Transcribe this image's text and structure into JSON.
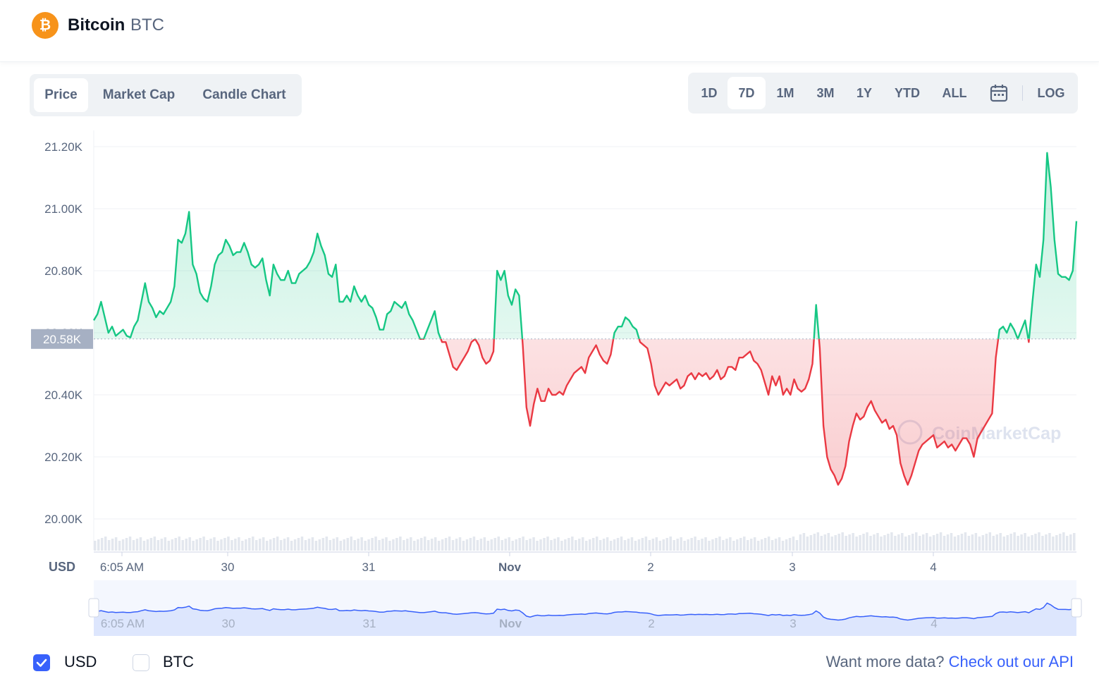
{
  "header": {
    "coin_name": "Bitcoin",
    "coin_symbol": "BTC",
    "logo_glyph": "₿",
    "logo_color": "#f7931a"
  },
  "tabs": [
    {
      "label": "Price",
      "active": true
    },
    {
      "label": "Market Cap",
      "active": false
    },
    {
      "label": "Candle Chart",
      "active": false
    }
  ],
  "ranges": [
    {
      "label": "1D",
      "active": false
    },
    {
      "label": "7D",
      "active": true
    },
    {
      "label": "1M",
      "active": false
    },
    {
      "label": "3M",
      "active": false
    },
    {
      "label": "1Y",
      "active": false
    },
    {
      "label": "YTD",
      "active": false
    },
    {
      "label": "ALL",
      "active": false
    }
  ],
  "log_label": "LOG",
  "calendar_icon": "calendar-icon",
  "colors": {
    "up": "#16c784",
    "down": "#ea3943",
    "accent": "#3861fb",
    "grid": "#eff2f5",
    "axis_text": "#58667e",
    "navigator_fill": "#dde6fd"
  },
  "chart_data": {
    "type": "line",
    "title": "",
    "ylabel": "USD",
    "ylim": [
      19900,
      21280
    ],
    "y_ticks": [
      "21.20K",
      "21.00K",
      "20.80K",
      "20.60K",
      "20.40K",
      "20.20K",
      "20.00K"
    ],
    "y_tick_values": [
      21200,
      21000,
      20800,
      20600,
      20400,
      20200,
      20000
    ],
    "baseline_label": "20.58K",
    "baseline_value": 20580,
    "x_tick_labels": [
      "6:05 AM",
      "30",
      "31",
      "Nov",
      "2",
      "3",
      "4"
    ],
    "watermark": "CoinMarketCap",
    "series": [
      {
        "values": [
          20640,
          20660,
          20700,
          20650,
          20600,
          20620,
          20590,
          20600,
          20610,
          20590,
          20585,
          20620,
          20640,
          20700,
          20760,
          20700,
          20680,
          20650,
          20670,
          20660,
          20680,
          20700,
          20750,
          20900,
          20890,
          20920,
          20990,
          20820,
          20790,
          20730,
          20710,
          20700,
          20750,
          20820,
          20850,
          20860,
          20900,
          20880,
          20850,
          20860,
          20860,
          20890,
          20860,
          20820,
          20810,
          20820,
          20840,
          20770,
          20720,
          20820,
          20790,
          20770,
          20770,
          20800,
          20760,
          20760,
          20790,
          20800,
          20810,
          20830,
          20860,
          20920,
          20880,
          20850,
          20790,
          20780,
          20820,
          20700,
          20700,
          20720,
          20700,
          20750,
          20720,
          20700,
          20720,
          20690,
          20680,
          20650,
          20610,
          20610,
          20660,
          20670,
          20700,
          20690,
          20680,
          20700,
          20660,
          20640,
          20610,
          20580,
          20580,
          20610,
          20640,
          20670,
          20600,
          20570,
          20570,
          20530,
          20490,
          20480,
          20500,
          20520,
          20540,
          20570,
          20580,
          20560,
          20520,
          20500,
          20510,
          20540,
          20800,
          20770,
          20800,
          20720,
          20690,
          20740,
          20720,
          20560,
          20360,
          20300,
          20370,
          20420,
          20380,
          20380,
          20420,
          20400,
          20400,
          20410,
          20400,
          20430,
          20450,
          20470,
          20480,
          20490,
          20470,
          20520,
          20540,
          20560,
          20530,
          20510,
          20500,
          20530,
          20600,
          20620,
          20620,
          20650,
          20640,
          20620,
          20610,
          20570,
          20560,
          20550,
          20500,
          20430,
          20400,
          20420,
          20440,
          20430,
          20440,
          20450,
          20420,
          20430,
          20460,
          20470,
          20450,
          20470,
          20460,
          20470,
          20450,
          20460,
          20480,
          20450,
          20460,
          20490,
          20490,
          20480,
          20520,
          20520,
          20530,
          20540,
          20510,
          20500,
          20480,
          20440,
          20400,
          20460,
          20430,
          20460,
          20400,
          20420,
          20400,
          20450,
          20420,
          20410,
          20420,
          20450,
          20500,
          20690,
          20550,
          20300,
          20200,
          20160,
          20140,
          20110,
          20130,
          20170,
          20250,
          20300,
          20340,
          20320,
          20330,
          20360,
          20380,
          20350,
          20330,
          20310,
          20320,
          20290,
          20300,
          20270,
          20180,
          20140,
          20110,
          20140,
          20180,
          20220,
          20240,
          20250,
          20260,
          20270,
          20230,
          20240,
          20250,
          20230,
          20240,
          20220,
          20240,
          20260,
          20260,
          20240,
          20200,
          20260,
          20280,
          20300,
          20320,
          20340,
          20520,
          20610,
          20620,
          20600,
          20630,
          20610,
          20580,
          20610,
          20640,
          20570,
          20700,
          20820,
          20780,
          20900,
          21180,
          21070,
          20900,
          20790,
          20780,
          20780,
          20770,
          20800,
          20960
        ]
      }
    ]
  },
  "bottom": {
    "usd_label": "USD",
    "usd_checked": true,
    "btc_label": "BTC",
    "btc_checked": false,
    "api_prefix": "Want more data?",
    "api_link": "Check out our API"
  }
}
